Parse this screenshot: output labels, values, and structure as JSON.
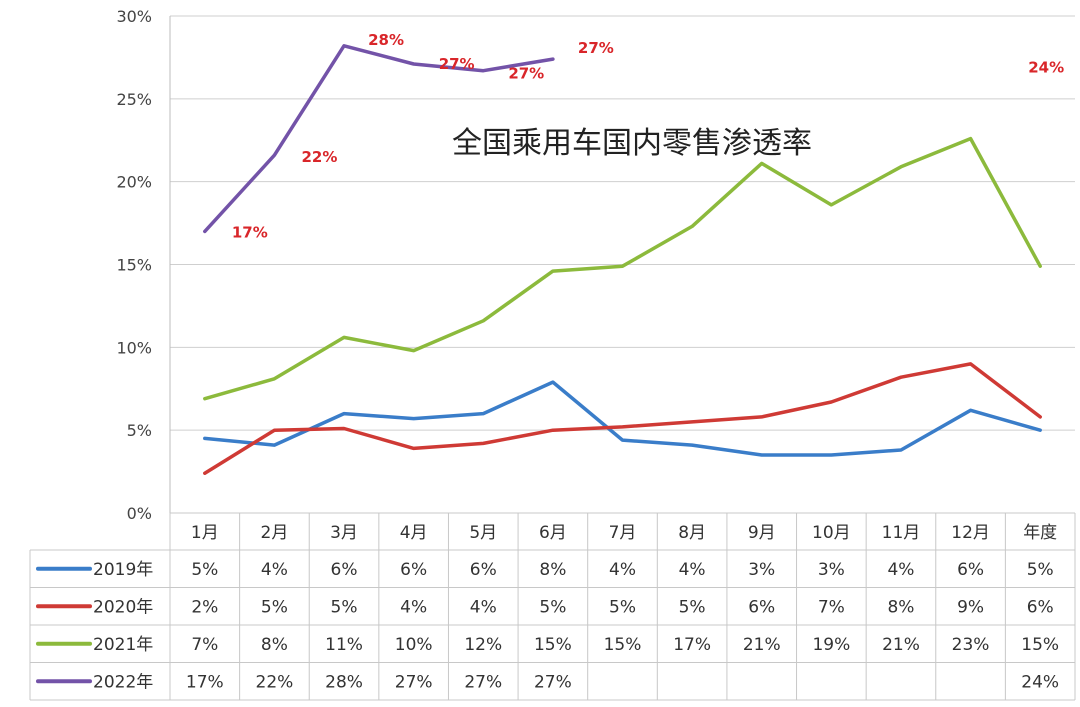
{
  "chart_data": {
    "type": "line",
    "title": "全国乘用车国内零售渗透率",
    "categories": [
      "1月",
      "2月",
      "3月",
      "4月",
      "5月",
      "6月",
      "7月",
      "8月",
      "9月",
      "10月",
      "11月",
      "12月",
      "年度"
    ],
    "y_ticks": [
      "0%",
      "5%",
      "10%",
      "15%",
      "20%",
      "25%",
      "30%"
    ],
    "ylim": [
      0,
      30
    ],
    "grid": true,
    "legend_placement": "data table rows below chart",
    "series": [
      {
        "name": "2019年",
        "color": "#3a7dc9",
        "values": [
          4.5,
          4.1,
          6.0,
          5.7,
          6.0,
          7.9,
          4.4,
          4.1,
          3.5,
          3.5,
          3.8,
          6.2,
          5.0
        ],
        "table": [
          "5%",
          "4%",
          "6%",
          "6%",
          "6%",
          "8%",
          "4%",
          "4%",
          "3%",
          "3%",
          "4%",
          "6%",
          "5%"
        ]
      },
      {
        "name": "2020年",
        "color": "#cf3a35",
        "values": [
          2.4,
          5.0,
          5.1,
          3.9,
          4.2,
          5.0,
          5.2,
          5.5,
          5.8,
          6.7,
          8.2,
          9.0,
          5.8
        ],
        "table": [
          "2%",
          "5%",
          "5%",
          "4%",
          "4%",
          "5%",
          "5%",
          "5%",
          "6%",
          "7%",
          "8%",
          "9%",
          "6%"
        ]
      },
      {
        "name": "2021年",
        "color": "#8cba3c",
        "values": [
          6.9,
          8.1,
          10.6,
          9.8,
          11.6,
          14.6,
          14.9,
          17.3,
          21.1,
          18.6,
          20.9,
          22.6,
          14.9
        ],
        "table": [
          "7%",
          "8%",
          "11%",
          "10%",
          "12%",
          "15%",
          "15%",
          "17%",
          "21%",
          "19%",
          "21%",
          "23%",
          "15%"
        ]
      },
      {
        "name": "2022年",
        "color": "#7353a8",
        "values": [
          17.0,
          21.6,
          28.2,
          27.1,
          26.7,
          27.4,
          null,
          null,
          null,
          null,
          null,
          null,
          null
        ],
        "table": [
          "17%",
          "22%",
          "28%",
          "27%",
          "27%",
          "27%",
          "",
          "",
          "",
          "",
          "",
          "",
          "24%"
        ]
      }
    ],
    "data_labels": [
      {
        "series": "2022年",
        "index": 0,
        "text": "17%"
      },
      {
        "series": "2022年",
        "index": 1,
        "text": "22%"
      },
      {
        "series": "2022年",
        "index": 2,
        "text": "28%"
      },
      {
        "series": "2022年",
        "index": 3,
        "text": "27%"
      },
      {
        "series": "2022年",
        "index": 4,
        "text": "27%"
      },
      {
        "series": "2022年",
        "index": 5,
        "text": "27%"
      },
      {
        "series": "2022年",
        "index": 12,
        "text": "24%"
      }
    ]
  }
}
